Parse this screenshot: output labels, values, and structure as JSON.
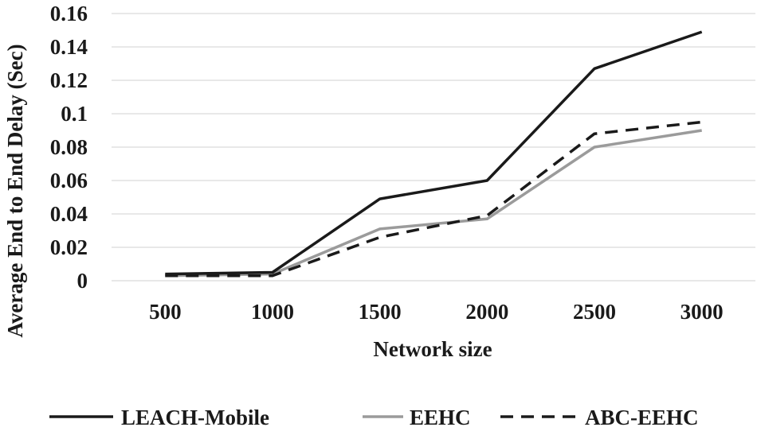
{
  "chart_data": {
    "type": "line",
    "title": "",
    "xlabel": "Network size",
    "ylabel": "Average End to End Delay (Sec)",
    "categories": [
      "500",
      "1000",
      "1500",
      "2000",
      "2500",
      "3000"
    ],
    "ylim": [
      0,
      0.16
    ],
    "yticks": [
      "0",
      "0.02",
      "0.04",
      "0.06",
      "0.08",
      "0.1",
      "0.12",
      "0.14",
      "0.16"
    ],
    "grid": true,
    "legend_position": "bottom",
    "series": [
      {
        "name": "LEACH-Mobile",
        "values": [
          0.004,
          0.005,
          0.049,
          0.06,
          0.127,
          0.149
        ],
        "color": "#1a1a1a",
        "dash": "solid"
      },
      {
        "name": "EEHC",
        "values": [
          0.003,
          0.004,
          0.031,
          0.037,
          0.08,
          0.09
        ],
        "color": "#9b9b9b",
        "dash": "solid"
      },
      {
        "name": "ABC-EEHC",
        "values": [
          0.003,
          0.003,
          0.026,
          0.039,
          0.088,
          0.095
        ],
        "color": "#1a1a1a",
        "dash": "dashed"
      }
    ]
  }
}
